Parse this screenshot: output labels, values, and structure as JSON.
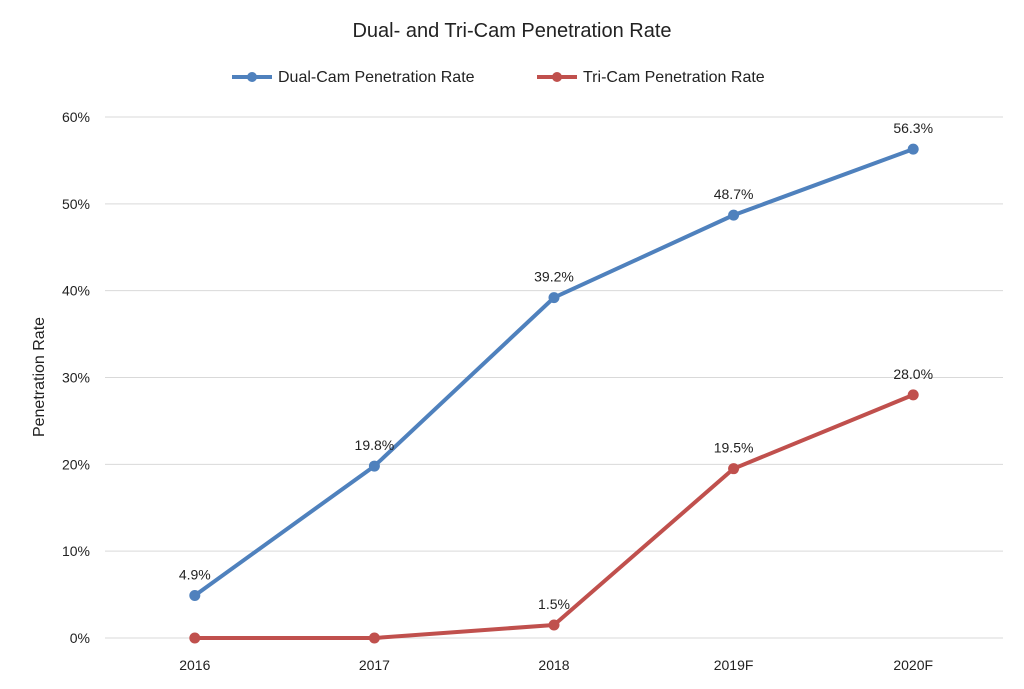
{
  "chart_data": {
    "type": "line",
    "title": "Dual- and Tri-Cam Penetration Rate",
    "xlabel": "",
    "ylabel": "Penetration Rate",
    "categories": [
      "2016",
      "2017",
      "2018",
      "2019F",
      "2020F"
    ],
    "ylim": [
      0,
      60
    ],
    "yticks": [
      0,
      10,
      20,
      30,
      40,
      50,
      60
    ],
    "ytick_labels": [
      "0%",
      "10%",
      "20%",
      "30%",
      "40%",
      "50%",
      "60%"
    ],
    "grid": true,
    "legend_position": "top-center",
    "series": [
      {
        "name": "Dual-Cam Penetration Rate",
        "color": "#4f81bd",
        "values": [
          4.9,
          19.8,
          39.2,
          48.7,
          56.3
        ],
        "labels": [
          "4.9%",
          "19.8%",
          "39.2%",
          "48.7%",
          "56.3%"
        ]
      },
      {
        "name": "Tri-Cam Penetration Rate",
        "color": "#c0504d",
        "values": [
          0,
          0,
          1.5,
          19.5,
          28.0
        ],
        "labels": [
          "",
          "",
          "1.5%",
          "19.5%",
          "28.0%"
        ]
      }
    ]
  }
}
